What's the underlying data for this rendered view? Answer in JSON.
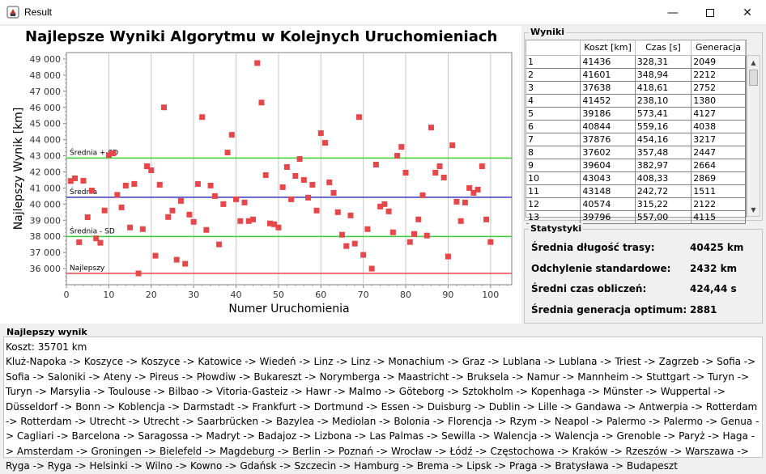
{
  "window": {
    "title": "Result",
    "minimize_icon": "minimize-icon",
    "maximize_icon": "maximize-icon",
    "close_icon": "close-icon"
  },
  "chart_data": {
    "type": "scatter",
    "title": "Najlepsze Wyniki Algorytmu w Kolejnych Uruchomieniach",
    "xlabel": "Numer Uruchomienia",
    "ylabel": "Najlepszy Wynik [km]",
    "xlim": [
      0,
      105
    ],
    "ylim": [
      35000,
      49400
    ],
    "xticks": [
      0,
      10,
      20,
      30,
      40,
      50,
      60,
      70,
      80,
      90,
      100
    ],
    "yticks": [
      36000,
      37000,
      38000,
      39000,
      40000,
      41000,
      42000,
      43000,
      44000,
      45000,
      46000,
      47000,
      48000,
      49000
    ],
    "ytick_labels": [
      "36 000",
      "37 000",
      "38 000",
      "39 000",
      "40 000",
      "41 000",
      "42 000",
      "43 000",
      "44 000",
      "45 000",
      "46 000",
      "47 000",
      "48 000",
      "49 000"
    ],
    "grid": "vertical",
    "point_color": "#e8474a",
    "lines": [
      {
        "label": "Średnia + SD",
        "y": 42857,
        "color": "#35d035"
      },
      {
        "label": "Średnia",
        "y": 40425,
        "color": "#3434c8"
      },
      {
        "label": "Średnia - SD",
        "y": 37993,
        "color": "#35d035"
      },
      {
        "label": "Najlepszy",
        "y": 35701,
        "color": "#e8474a"
      }
    ],
    "points": [
      [
        1,
        41436
      ],
      [
        2,
        41601
      ],
      [
        3,
        37638
      ],
      [
        4,
        41452
      ],
      [
        5,
        39186
      ],
      [
        6,
        40844
      ],
      [
        7,
        37876
      ],
      [
        8,
        37602
      ],
      [
        9,
        39604
      ],
      [
        10,
        43043
      ],
      [
        11,
        43148
      ],
      [
        12,
        40574
      ],
      [
        13,
        39796
      ],
      [
        14,
        41150
      ],
      [
        15,
        38550
      ],
      [
        16,
        41250
      ],
      [
        17,
        35701
      ],
      [
        18,
        38450
      ],
      [
        19,
        42350
      ],
      [
        20,
        42100
      ],
      [
        21,
        36800
      ],
      [
        22,
        41200
      ],
      [
        23,
        46000
      ],
      [
        24,
        39200
      ],
      [
        25,
        39600
      ],
      [
        26,
        36550
      ],
      [
        27,
        40200
      ],
      [
        28,
        36300
      ],
      [
        29,
        39350
      ],
      [
        30,
        38900
      ],
      [
        31,
        41250
      ],
      [
        32,
        45400
      ],
      [
        33,
        38400
      ],
      [
        34,
        41150
      ],
      [
        35,
        40500
      ],
      [
        36,
        37500
      ],
      [
        37,
        40000
      ],
      [
        38,
        43200
      ],
      [
        39,
        44300
      ],
      [
        40,
        40300
      ],
      [
        41,
        38950
      ],
      [
        42,
        40100
      ],
      [
        43,
        38950
      ],
      [
        44,
        39050
      ],
      [
        45,
        48750
      ],
      [
        46,
        46300
      ],
      [
        47,
        41800
      ],
      [
        48,
        38800
      ],
      [
        49,
        38750
      ],
      [
        50,
        38550
      ],
      [
        51,
        41050
      ],
      [
        52,
        42300
      ],
      [
        53,
        40300
      ],
      [
        54,
        41750
      ],
      [
        55,
        42800
      ],
      [
        56,
        41500
      ],
      [
        57,
        40400
      ],
      [
        58,
        41200
      ],
      [
        59,
        39600
      ],
      [
        60,
        44400
      ],
      [
        61,
        43800
      ],
      [
        62,
        41350
      ],
      [
        63,
        40700
      ],
      [
        64,
        39500
      ],
      [
        65,
        38100
      ],
      [
        66,
        37400
      ],
      [
        67,
        39300
      ],
      [
        68,
        37550
      ],
      [
        69,
        45400
      ],
      [
        70,
        36850
      ],
      [
        71,
        38450
      ],
      [
        72,
        36000
      ],
      [
        73,
        42450
      ],
      [
        74,
        39850
      ],
      [
        75,
        40000
      ],
      [
        76,
        39550
      ],
      [
        77,
        38250
      ],
      [
        78,
        43000
      ],
      [
        79,
        43550
      ],
      [
        80,
        41950
      ],
      [
        81,
        37650
      ],
      [
        82,
        38150
      ],
      [
        83,
        39050
      ],
      [
        84,
        40550
      ],
      [
        85,
        38050
      ],
      [
        86,
        44750
      ],
      [
        87,
        41950
      ],
      [
        88,
        42350
      ],
      [
        89,
        41650
      ],
      [
        90,
        36750
      ],
      [
        91,
        43650
      ],
      [
        92,
        40150
      ],
      [
        93,
        38950
      ],
      [
        94,
        40100
      ],
      [
        95,
        41000
      ],
      [
        96,
        40700
      ],
      [
        97,
        40900
      ],
      [
        98,
        42350
      ],
      [
        99,
        39050
      ],
      [
        100,
        37650
      ]
    ]
  },
  "results": {
    "legend": "Wyniki",
    "columns": [
      "",
      "Koszt [km]",
      "Czas [s]",
      "Generacja"
    ],
    "rows": [
      [
        "1",
        "41436",
        "328,31",
        "2049"
      ],
      [
        "2",
        "41601",
        "348,94",
        "2212"
      ],
      [
        "3",
        "37638",
        "418,61",
        "2752"
      ],
      [
        "4",
        "41452",
        "238,10",
        "1380"
      ],
      [
        "5",
        "39186",
        "573,41",
        "4127"
      ],
      [
        "6",
        "40844",
        "559,16",
        "4038"
      ],
      [
        "7",
        "37876",
        "454,16",
        "3217"
      ],
      [
        "8",
        "37602",
        "357,48",
        "2447"
      ],
      [
        "9",
        "39604",
        "382,97",
        "2664"
      ],
      [
        "10",
        "43043",
        "408,33",
        "2869"
      ],
      [
        "11",
        "43148",
        "242,72",
        "1511"
      ],
      [
        "12",
        "40574",
        "315,22",
        "2122"
      ],
      [
        "13",
        "39796",
        "557,00",
        "4115"
      ]
    ]
  },
  "stats": {
    "legend": "Statystyki",
    "items": [
      {
        "label": "Średnia długość trasy:",
        "value": "40425 km"
      },
      {
        "label": "Odchylenie standardowe:",
        "value": "2432 km"
      },
      {
        "label": "Średni czas obliczeń:",
        "value": "424,44 s"
      },
      {
        "label": "Średnia generacja optimum:",
        "value": "2881"
      }
    ]
  },
  "best": {
    "legend": "Najlepszy wynik",
    "cost": "Koszt: 35701 km",
    "route": "Kluż-Napoka -> Koszyce -> Koszyce -> Katowice -> Wiedeń -> Linz -> Linz -> Monachium -> Graz -> Lublana -> Lublana -> Triest -> Zagrzeb -> Sofia -> Sofia -> Saloniki -> Ateny -> Pireus -> Płowdiw -> Bukareszt -> Norymberga -> Maastricht -> Bruksela -> Namur -> Mannheim -> Stuttgart -> Turyn -> Turyn -> Marsylia -> Toulouse -> Bilbao -> Vitoria-Gasteiz -> Hawr -> Malmo -> Göteborg -> Sztokholm -> Kopenhaga -> Münster -> Wuppertal -> Düsseldorf -> Bonn -> Koblencja -> Darmstadt -> Frankfurt -> Dortmund -> Essen -> Duisburg -> Dublin -> Lille -> Gandawa -> Antwerpia -> Rotterdam -> Rotterdam -> Utrecht -> Utrecht -> Saarbrücken -> Bazylea -> Mediolan -> Bolonia -> Florencja -> Rzym -> Neapol -> Palermo -> Palermo -> Genua -> Cagliari -> Barcelona -> Saragossa -> Madryt -> Badajoz -> Lizbona -> Las Palmas -> Sewilla -> Walencja -> Walencja -> Grenoble -> Paryż -> Haga -> Amsterdam -> Groningen -> Bielefeld -> Magdeburg -> Berlin -> Poznań -> Wrocław -> Łódź -> Częstochowa -> Kraków -> Rzeszów -> Warszawa -> Ryga -> Ryga -> Helsinki -> Wilno -> Kowno -> Gdańsk -> Szczecin -> Hamburg -> Brema -> Lipsk -> Praga -> Bratysława -> Budapeszt"
  }
}
